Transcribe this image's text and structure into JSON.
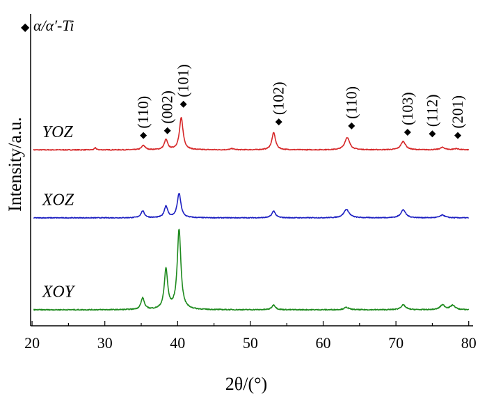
{
  "chart_data": {
    "type": "line",
    "xlabel": "2θ/(°)",
    "ylabel": "Intensity/a.u.",
    "xlim": [
      19.8,
      80.6
    ],
    "x_ticks": [
      20,
      30,
      40,
      50,
      60,
      70,
      80
    ],
    "y_ticks_shown": false,
    "grid": false,
    "legend": {
      "placement": "top-left",
      "marker": "◆",
      "label": "α/α′-Ti"
    },
    "series": [
      {
        "name": "YOZ",
        "color": "#d62728",
        "baseline": 0,
        "noise": 0.05,
        "peaks": [
          {
            "x": 28.7,
            "h": 0.25,
            "w": 0.15
          },
          {
            "x": 35.3,
            "h": 0.55,
            "w": 0.3
          },
          {
            "x": 38.4,
            "h": 1.25,
            "w": 0.28
          },
          {
            "x": 40.5,
            "h": 4.0,
            "w": 0.3
          },
          {
            "x": 47.5,
            "h": 0.15,
            "w": 0.3
          },
          {
            "x": 53.2,
            "h": 2.15,
            "w": 0.3
          },
          {
            "x": 63.3,
            "h": 1.55,
            "w": 0.4
          },
          {
            "x": 71.0,
            "h": 1.05,
            "w": 0.4
          },
          {
            "x": 76.4,
            "h": 0.3,
            "w": 0.4
          },
          {
            "x": 78.3,
            "h": 0.15,
            "w": 0.4
          }
        ]
      },
      {
        "name": "XOZ",
        "color": "#1f22c2",
        "baseline": -8.5,
        "noise": 0.05,
        "peaks": [
          {
            "x": 35.2,
            "h": 0.85,
            "w": 0.3
          },
          {
            "x": 38.4,
            "h": 1.45,
            "w": 0.28
          },
          {
            "x": 40.2,
            "h": 3.05,
            "w": 0.3
          },
          {
            "x": 53.2,
            "h": 0.85,
            "w": 0.3
          },
          {
            "x": 63.2,
            "h": 1.05,
            "w": 0.45
          },
          {
            "x": 71.0,
            "h": 1.0,
            "w": 0.4
          },
          {
            "x": 76.4,
            "h": 0.35,
            "w": 0.4
          }
        ]
      },
      {
        "name": "XOY",
        "color": "#1e8a1e",
        "baseline": -20,
        "noise": 0.06,
        "peaks": [
          {
            "x": 35.2,
            "h": 1.45,
            "w": 0.28
          },
          {
            "x": 38.4,
            "h": 5.0,
            "w": 0.28
          },
          {
            "x": 40.2,
            "h": 10.0,
            "w": 0.3
          },
          {
            "x": 53.2,
            "h": 0.6,
            "w": 0.3
          },
          {
            "x": 63.2,
            "h": 0.3,
            "w": 0.4
          },
          {
            "x": 71.0,
            "h": 0.6,
            "w": 0.4
          },
          {
            "x": 76.4,
            "h": 0.6,
            "w": 0.4
          },
          {
            "x": 77.8,
            "h": 0.55,
            "w": 0.4
          }
        ]
      }
    ],
    "ylim": [
      -22,
      17
    ],
    "peak_annotations": [
      {
        "label": "(110)",
        "x": 35.3,
        "marker_y": 1.8
      },
      {
        "label": "(002)",
        "x": 38.6,
        "marker_y": 2.4
      },
      {
        "label": "(101)",
        "x": 40.8,
        "marker_y": 5.7
      },
      {
        "label": "(102)",
        "x": 53.9,
        "marker_y": 3.5
      },
      {
        "label": "(110)",
        "x": 63.9,
        "marker_y": 3.0
      },
      {
        "label": "(103)",
        "x": 71.6,
        "marker_y": 2.2
      },
      {
        "label": "(112)",
        "x": 75.0,
        "marker_y": 2.0
      },
      {
        "label": "(201)",
        "x": 78.5,
        "marker_y": 1.8
      }
    ]
  }
}
